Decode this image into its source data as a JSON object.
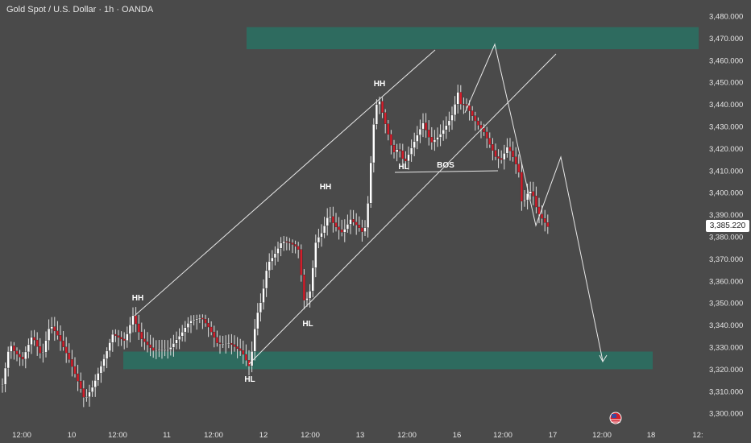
{
  "header": {
    "title": "Gold Spot / U.S. Dollar · 1h · OANDA"
  },
  "colors": {
    "background": "#4a4a4a",
    "zone": "#2e6b5f",
    "candle_up": "#ffffff",
    "candle_down": "#d21e2b",
    "axis_text": "#e6e6e6",
    "lines": "#e8e8e8"
  },
  "price_tag": "3,385.220",
  "chart_data": {
    "type": "candlestick",
    "y_axis": {
      "range": [
        3295,
        3485
      ],
      "tick_labels": [
        "3,480.000",
        "3,470.000",
        "3,460.000",
        "3,450.000",
        "3,440.000",
        "3,430.000",
        "3,420.000",
        "3,410.000",
        "3,400.000",
        "3,390.000",
        "3,380.000",
        "3,370.000",
        "3,360.000",
        "3,350.000",
        "3,340.000",
        "3,330.000",
        "3,320.000",
        "3,310.000",
        "3,300.000"
      ]
    },
    "x_axis": {
      "tick_labels": [
        "12:00",
        "10",
        "12:00",
        "11",
        "12:00",
        "12",
        "12:00",
        "13",
        "12:00",
        "16",
        "12:00",
        "17",
        "12:00",
        "18",
        "12:"
      ]
    },
    "zones": [
      {
        "name": "resistance-zone",
        "price_top": 3475,
        "price_bottom": 3465
      },
      {
        "name": "support-zone",
        "price_top": 3328,
        "price_bottom": 3320
      }
    ],
    "annotations": [
      {
        "text": "HH",
        "price": 3352
      },
      {
        "text": "HL",
        "price": 3316
      },
      {
        "text": "HH",
        "price": 3398
      },
      {
        "text": "HL",
        "price": 3341
      },
      {
        "text": "HH",
        "price": 3450
      },
      {
        "text": "HL",
        "price": 3410
      },
      {
        "text": "BOS",
        "price": 3411
      }
    ],
    "grid": false
  }
}
